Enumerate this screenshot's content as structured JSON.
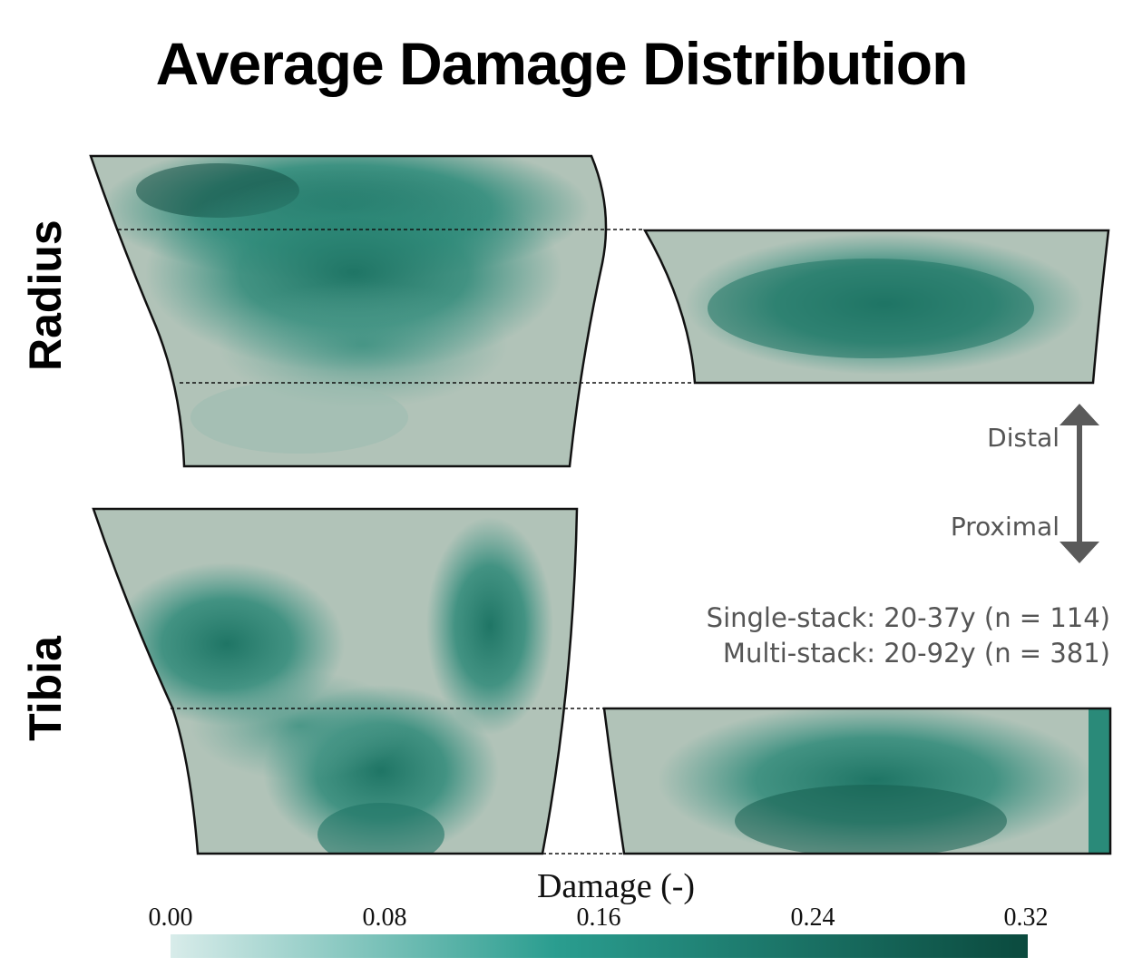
{
  "title": "Average Damage Distribution",
  "labels": {
    "radius": "Radius",
    "tibia": "Tibia"
  },
  "direction": {
    "distal": "Distal",
    "proximal": "Proximal"
  },
  "legend": {
    "single_stack": "Single-stack: 20-37y (n = 114)",
    "multi_stack": "Multi-stack: 20-92y (n = 381)"
  },
  "colorbar": {
    "title": "Damage (-)",
    "ticks": [
      "0.00",
      "0.08",
      "0.16",
      "0.24",
      "0.32"
    ],
    "min": 0.0,
    "max": 0.32,
    "color_low": "#d8ecea",
    "color_mid": "#2a9d8f",
    "color_high": "#0b4a3e"
  },
  "colors": {
    "bone_base": "#b1c3b8",
    "damage_mid": "#3c8f80",
    "damage_high": "#1c6e5f",
    "arrow": "#5a5a5a"
  }
}
